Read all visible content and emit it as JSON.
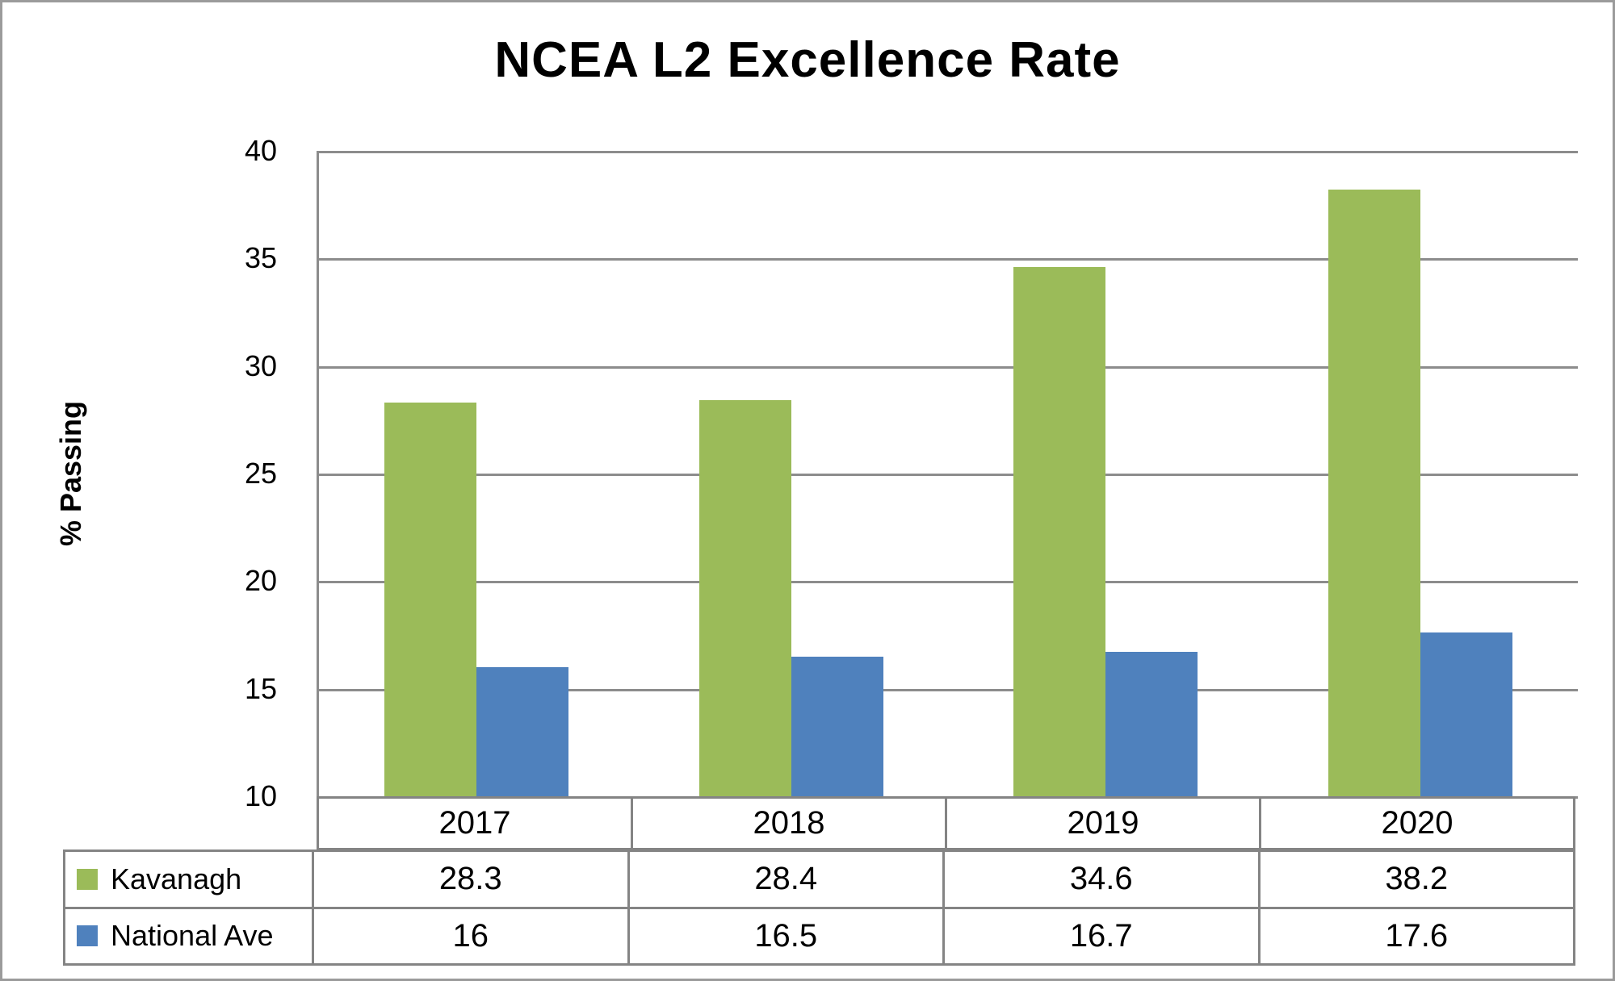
{
  "colors": {
    "kavanagh": "#9BBB59",
    "national_ave": "#4F81BD",
    "gridline": "#8C8C8C",
    "table_border": "#848484",
    "outer_border": "#9B9B9B",
    "background": "#FFFFFF",
    "text": "#000000"
  },
  "chart_data": {
    "type": "bar",
    "title": "NCEA L2 Excellence Rate",
    "xlabel": "",
    "ylabel": "% Passing",
    "categories": [
      "2017",
      "2018",
      "2019",
      "2020"
    ],
    "series": [
      {
        "name": "Kavanagh",
        "color": "#9BBB59",
        "values": [
          28.3,
          28.4,
          34.6,
          38.2
        ]
      },
      {
        "name": "National Ave",
        "color": "#4F81BD",
        "values": [
          16,
          16.5,
          16.7,
          17.6
        ]
      }
    ],
    "ylim": [
      10,
      40
    ],
    "yticks": [
      40,
      35,
      30,
      25,
      20,
      15,
      10
    ],
    "grid": true,
    "legend_position": "table-left",
    "data_table_shown": true
  }
}
